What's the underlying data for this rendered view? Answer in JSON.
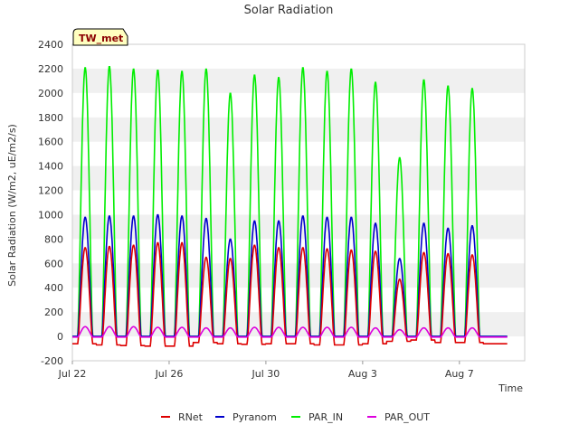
{
  "chart_data": {
    "type": "line",
    "title": "Solar Radiation",
    "badge": "TW_met",
    "xlabel": "Time",
    "ylabel": "Solar Radiation (W/m2, uE/m2/s)",
    "ylim": [
      -200,
      2400
    ],
    "yticks": [
      -200,
      0,
      200,
      400,
      600,
      800,
      1000,
      1200,
      1400,
      1600,
      1800,
      2000,
      2200,
      2400
    ],
    "xlim": [
      0,
      18.7
    ],
    "xticks": [
      {
        "value": 0,
        "label": "Jul 22"
      },
      {
        "value": 4,
        "label": "Jul 26"
      },
      {
        "value": 8,
        "label": "Jul 30"
      },
      {
        "value": 12,
        "label": "Aug 3"
      },
      {
        "value": 16,
        "label": "Aug 7"
      }
    ],
    "grid": "horizontal bands",
    "legend_position": "bottom-center",
    "day_peaks": {
      "days": [
        0,
        1,
        2,
        3,
        4,
        5,
        6,
        7,
        8,
        9,
        10,
        11,
        12,
        13,
        14,
        15,
        16,
        17
      ],
      "PAR_IN": [
        2210,
        2220,
        2200,
        2190,
        2180,
        2200,
        2000,
        2150,
        2130,
        2210,
        2180,
        2200,
        2090,
        1470,
        2110,
        2060,
        2040,
        0
      ],
      "Pyranom": [
        980,
        990,
        990,
        1000,
        990,
        970,
        800,
        950,
        950,
        990,
        980,
        980,
        930,
        640,
        930,
        890,
        910,
        0
      ],
      "RNet": [
        730,
        740,
        750,
        770,
        770,
        650,
        640,
        750,
        730,
        730,
        720,
        710,
        700,
        470,
        690,
        680,
        670,
        0
      ],
      "PAR_OUT": [
        80,
        80,
        80,
        75,
        75,
        70,
        70,
        75,
        75,
        75,
        75,
        75,
        70,
        55,
        70,
        70,
        70,
        0
      ],
      "RNet_night": [
        -60,
        -70,
        -75,
        -80,
        -80,
        -50,
        -60,
        -65,
        -60,
        -60,
        -70,
        -70,
        -60,
        -40,
        -30,
        -50,
        -50,
        -60
      ]
    },
    "series": [
      {
        "name": "RNet",
        "color": "#dd0000"
      },
      {
        "name": "Pyranom",
        "color": "#0000cc"
      },
      {
        "name": "PAR_IN",
        "color": "#00ee00"
      },
      {
        "name": "PAR_OUT",
        "color": "#dd00dd"
      }
    ]
  }
}
